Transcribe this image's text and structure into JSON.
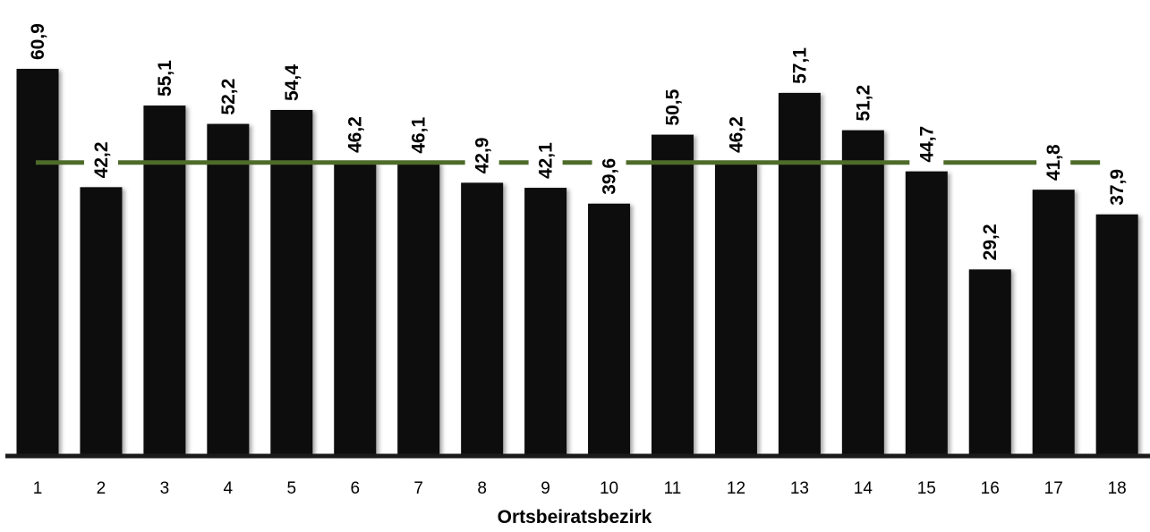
{
  "chart_data": {
    "type": "bar",
    "xlabel": "Ortsbeiratsbezirk",
    "ylabel": "",
    "categories": [
      "1",
      "2",
      "3",
      "4",
      "5",
      "6",
      "7",
      "8",
      "9",
      "10",
      "11",
      "12",
      "13",
      "14",
      "15",
      "16",
      "17",
      "18"
    ],
    "values": [
      60.9,
      42.2,
      55.1,
      52.2,
      54.4,
      46.2,
      46.1,
      42.9,
      42.1,
      39.6,
      50.5,
      46.2,
      57.1,
      51.2,
      44.7,
      29.2,
      41.8,
      37.9
    ],
    "value_labels": [
      "60,9",
      "42,2",
      "55,1",
      "52,2",
      "54,4",
      "46,2",
      "46,1",
      "42,9",
      "42,1",
      "39,6",
      "50,5",
      "46,2",
      "57,1",
      "51,2",
      "44,7",
      "29,2",
      "41,8",
      "37,9"
    ],
    "reference_line": 46.1,
    "ylim": [
      0,
      60.9
    ],
    "grid": false,
    "legend": "none",
    "bar_color": "#0a0a0a",
    "reference_line_color": "#4e6b2a",
    "axis_color": "#1a1a1a"
  }
}
